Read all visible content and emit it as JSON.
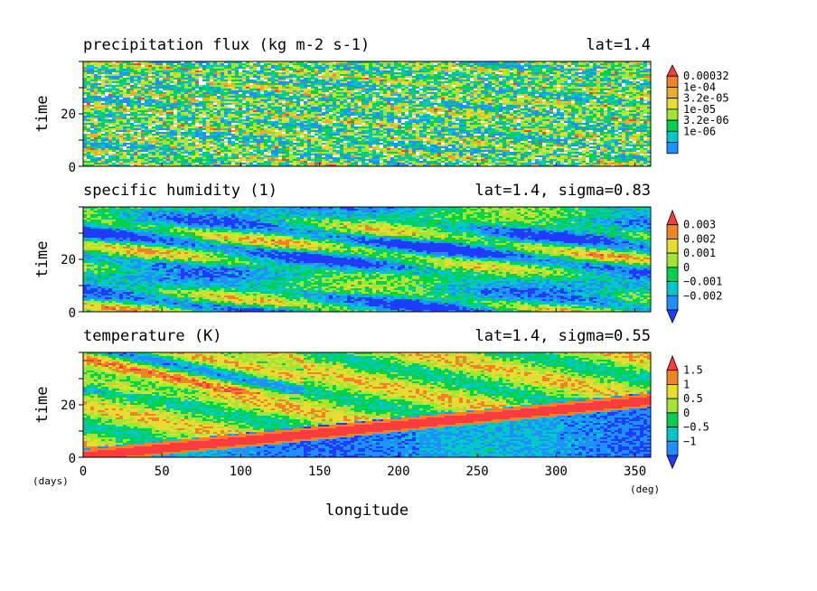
{
  "chart_data": [
    {
      "type": "heatmap",
      "title": "precipitation flux (kg m-2 s-1)",
      "subtitle": "lat=1.4",
      "ylabel": "time",
      "xlim": [
        0,
        360
      ],
      "ylim": [
        0,
        40
      ],
      "yticks": [
        "0",
        "20"
      ],
      "colorbar_labels": [
        "0.00032",
        "1e-04",
        "3.2e-05",
        "1e-05",
        "3.2e-06",
        "1e-06"
      ],
      "colors": [
        "#ffffff",
        "#1e90ff",
        "#00c8c8",
        "#00d250",
        "#a0e632",
        "#e6dc32",
        "#e6af2d",
        "#f08228",
        "#fa3c3c"
      ],
      "palette": [
        0.06,
        0.4,
        0.18,
        0.18,
        0.06,
        0.06,
        0.04,
        0.02,
        0.0
      ],
      "extend": "max"
    },
    {
      "type": "heatmap",
      "title": "specific humidity (1)",
      "subtitle": "lat=1.4, sigma=0.83",
      "ylabel": "time",
      "xlim": [
        0,
        360
      ],
      "ylim": [
        0,
        40
      ],
      "yticks": [
        "0",
        "20"
      ],
      "colorbar_labels": [
        "0.003",
        "0.002",
        "0.001",
        "0",
        "−0.001",
        "−0.002"
      ],
      "colors": [
        "#1e3cff",
        "#1e90ff",
        "#00c8c8",
        "#00d250",
        "#a0e632",
        "#e6dc32",
        "#f08228",
        "#fa3c3c"
      ],
      "extend": "both"
    },
    {
      "type": "heatmap",
      "title": "temperature (K)",
      "subtitle": "lat=1.4, sigma=0.55",
      "ylabel": "time",
      "xlabel": "longitude",
      "xunit": "(deg)",
      "yunit": "(days)",
      "xlim": [
        0,
        360
      ],
      "ylim": [
        0,
        40
      ],
      "xticks": [
        "0",
        "50",
        "100",
        "150",
        "200",
        "250",
        "300",
        "350"
      ],
      "yticks": [
        "0",
        "20"
      ],
      "colorbar_labels": [
        "1.5",
        "1",
        "0.5",
        "0",
        "−0.5",
        "−1"
      ],
      "colors": [
        "#1e3cff",
        "#1e90ff",
        "#00c8c8",
        "#00d250",
        "#a0e632",
        "#e6dc32",
        "#f08228",
        "#fa3c3c"
      ],
      "extend": "both"
    }
  ]
}
